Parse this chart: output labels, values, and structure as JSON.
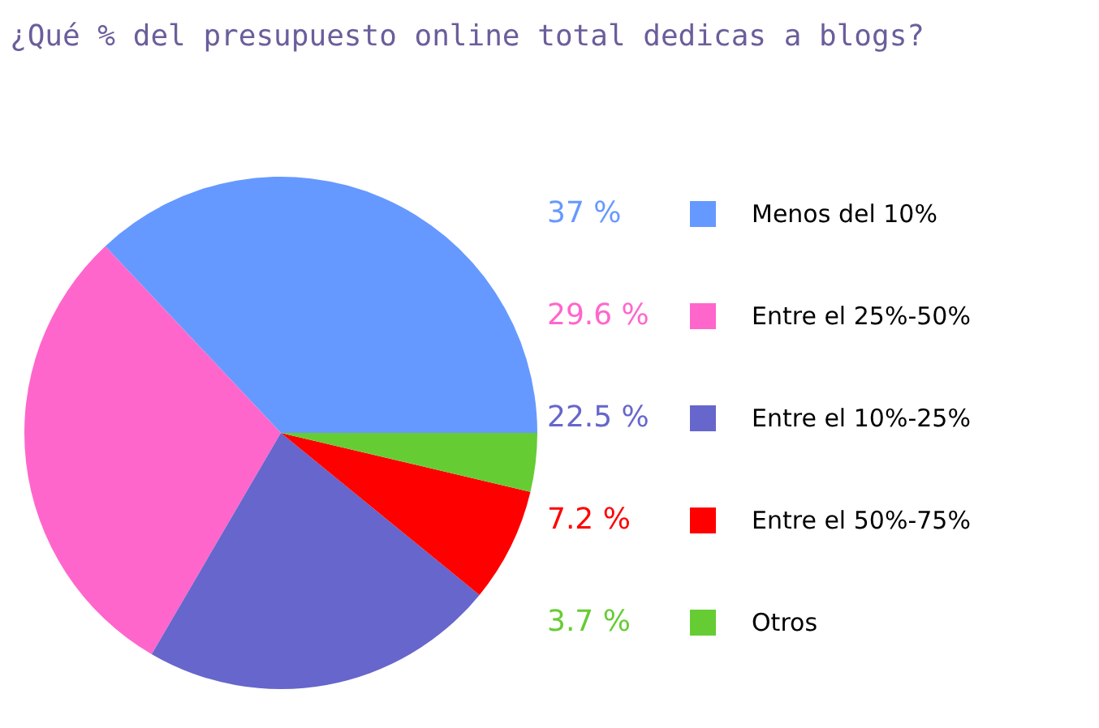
{
  "chart_data": {
    "type": "pie",
    "title": "¿Qué % del presupuesto online total dedicas a blogs?",
    "categories": [
      "Menos del 10%",
      "Entre el 25%-50%",
      "Entre el 10%-25%",
      "Entre el 50%-75%",
      "Otros"
    ],
    "values": [
      37,
      29.6,
      22.5,
      7.2,
      3.7
    ],
    "colors": [
      "#6699ff",
      "#ff66cc",
      "#6666cc",
      "#ff0000",
      "#66cc33"
    ],
    "value_labels": [
      "37 %",
      "29.6 %",
      "22.5 %",
      "7.2 %",
      "3.7 %"
    ],
    "legend": "right"
  }
}
